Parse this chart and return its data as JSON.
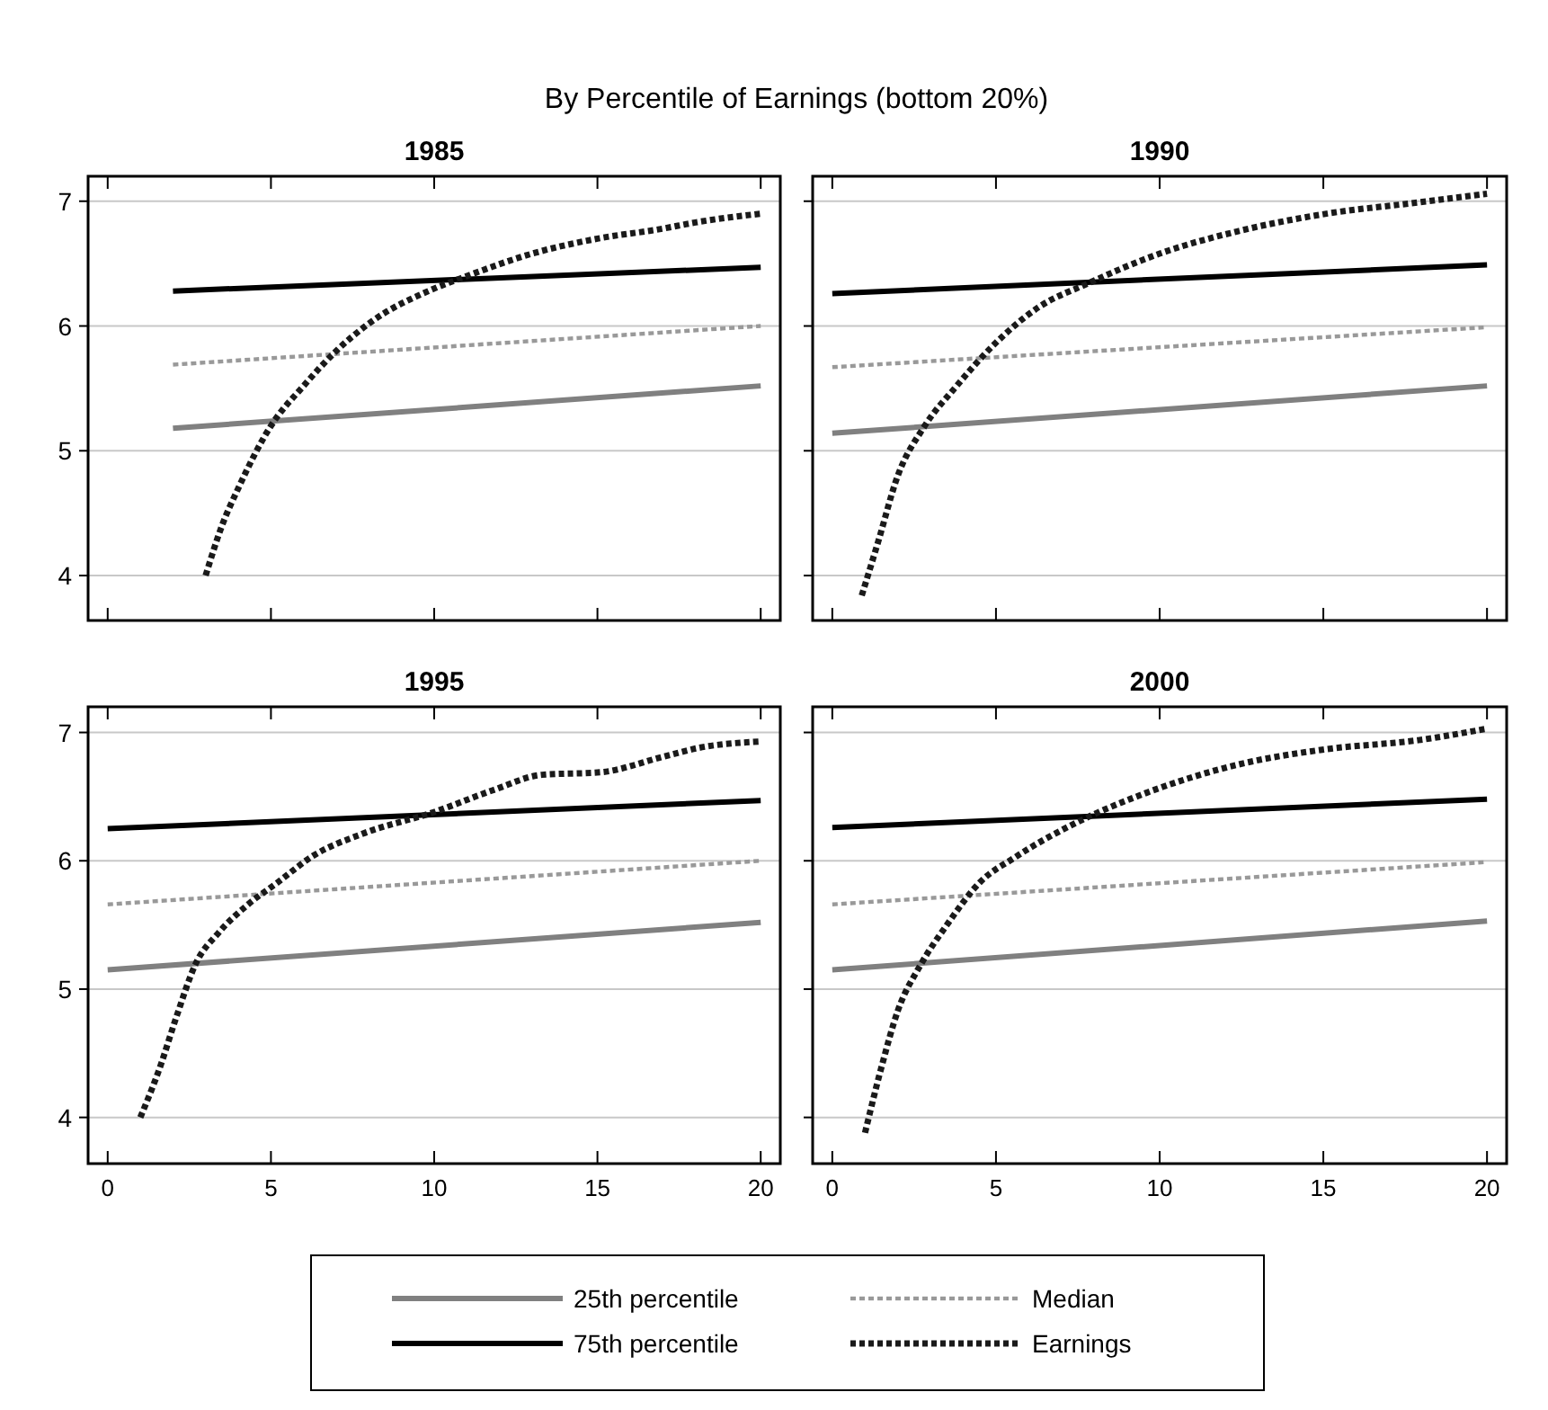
{
  "chart_data": [
    {
      "type": "line",
      "title": "1985",
      "annotations": [
        "By Percentile of Earnings (bottom 20%)"
      ],
      "xlim": [
        -0.6,
        20.6
      ],
      "xticks": [
        0,
        5,
        10,
        15,
        20
      ],
      "ylim": [
        3.64,
        7.2
      ],
      "yticks": [
        4,
        5,
        6,
        7
      ],
      "grid": "y",
      "legend": "bottom",
      "tick_labels": "y",
      "series": [
        {
          "name": "25th percentile",
          "color": "#808080",
          "line_style": "solid",
          "x": [
            2,
            20
          ],
          "values": [
            5.18,
            5.52
          ]
        },
        {
          "name": "75th percentile",
          "color": "#000000",
          "line_style": "solid",
          "x": [
            2,
            20
          ],
          "values": [
            6.28,
            6.47
          ]
        },
        {
          "name": "Median",
          "color": "#999999",
          "line_style": "dotted",
          "x": [
            2,
            20
          ],
          "values": [
            5.69,
            6.0
          ]
        },
        {
          "name": "Earnings",
          "color": "#1a1a1a",
          "line_style": "dotted",
          "x": [
            3,
            3.5,
            4,
            5,
            6,
            7,
            8,
            10,
            11,
            13,
            15,
            17,
            18,
            20
          ],
          "values": [
            4.0,
            4.4,
            4.7,
            5.2,
            5.52,
            5.8,
            6.02,
            6.3,
            6.4,
            6.58,
            6.7,
            6.78,
            6.83,
            6.9
          ]
        }
      ]
    },
    {
      "type": "line",
      "title": "1990",
      "xlim": [
        -0.6,
        20.6
      ],
      "xticks": [
        0,
        5,
        10,
        15,
        20
      ],
      "ylim": [
        3.64,
        7.2
      ],
      "yticks": [
        4,
        5,
        6,
        7
      ],
      "grid": "y",
      "tick_labels": false,
      "series": [
        {
          "color": "#808080",
          "line_style": "solid",
          "x": [
            0,
            20
          ],
          "values": [
            5.14,
            5.52
          ]
        },
        {
          "color": "#000000",
          "line_style": "solid",
          "x": [
            0,
            20
          ],
          "values": [
            6.26,
            6.49
          ]
        },
        {
          "color": "#999999",
          "line_style": "dotted",
          "x": [
            0,
            20
          ],
          "values": [
            5.67,
            5.99
          ]
        },
        {
          "color": "#1a1a1a",
          "line_style": "dotted",
          "x": [
            0.9,
            1.4,
            2,
            2.8,
            3.8,
            4.9,
            6.3,
            7.8,
            10,
            12.4,
            15.1,
            17.9,
            20
          ],
          "values": [
            3.84,
            4.27,
            4.8,
            5.19,
            5.52,
            5.84,
            6.15,
            6.34,
            6.58,
            6.76,
            6.9,
            6.99,
            7.06
          ]
        }
      ]
    },
    {
      "type": "line",
      "title": "1995",
      "xlim": [
        -0.6,
        20.6
      ],
      "xticks": [
        0,
        5,
        10,
        15,
        20
      ],
      "ylim": [
        3.64,
        7.2
      ],
      "yticks": [
        4,
        5,
        6,
        7
      ],
      "grid": "y",
      "series": [
        {
          "color": "#808080",
          "line_style": "solid",
          "x": [
            0,
            20
          ],
          "values": [
            5.15,
            5.52
          ]
        },
        {
          "color": "#000000",
          "line_style": "solid",
          "x": [
            0,
            20
          ],
          "values": [
            6.25,
            6.47
          ]
        },
        {
          "color": "#999999",
          "line_style": "dotted",
          "x": [
            0,
            20
          ],
          "values": [
            5.66,
            6.0
          ]
        },
        {
          "color": "#1a1a1a",
          "line_style": "dotted",
          "x": [
            1,
            1.6,
            2.1,
            2.7,
            3.4,
            4.3,
            5.2,
            6.3,
            7.8,
            10,
            11.8,
            13.3,
            15.1,
            17,
            18.1,
            20
          ],
          "values": [
            4.0,
            4.39,
            4.78,
            5.2,
            5.44,
            5.66,
            5.83,
            6.04,
            6.21,
            6.38,
            6.55,
            6.67,
            6.69,
            6.81,
            6.88,
            6.93
          ]
        }
      ]
    },
    {
      "type": "line",
      "title": "2000",
      "xlim": [
        -0.6,
        20.6
      ],
      "xticks": [
        0,
        5,
        10,
        15,
        20
      ],
      "ylim": [
        3.64,
        7.2
      ],
      "yticks": [
        4,
        5,
        6,
        7
      ],
      "grid": "y",
      "tick_labels": "x",
      "series": [
        {
          "color": "#808080",
          "line_style": "solid",
          "x": [
            0,
            20
          ],
          "values": [
            5.15,
            5.53
          ]
        },
        {
          "color": "#000000",
          "line_style": "solid",
          "x": [
            0,
            20
          ],
          "values": [
            6.26,
            6.48
          ]
        },
        {
          "color": "#999999",
          "line_style": "dotted",
          "x": [
            0,
            20
          ],
          "values": [
            5.66,
            5.99
          ]
        },
        {
          "color": "#1a1a1a",
          "line_style": "dotted",
          "x": [
            1,
            1.5,
            2,
            2.7,
            3.5,
            4.5,
            5.6,
            7.4,
            9.6,
            12.4,
            15.1,
            17.9,
            20
          ],
          "values": [
            3.88,
            4.39,
            4.83,
            5.19,
            5.5,
            5.83,
            6.03,
            6.29,
            6.53,
            6.75,
            6.87,
            6.94,
            7.03
          ]
        }
      ]
    }
  ]
}
